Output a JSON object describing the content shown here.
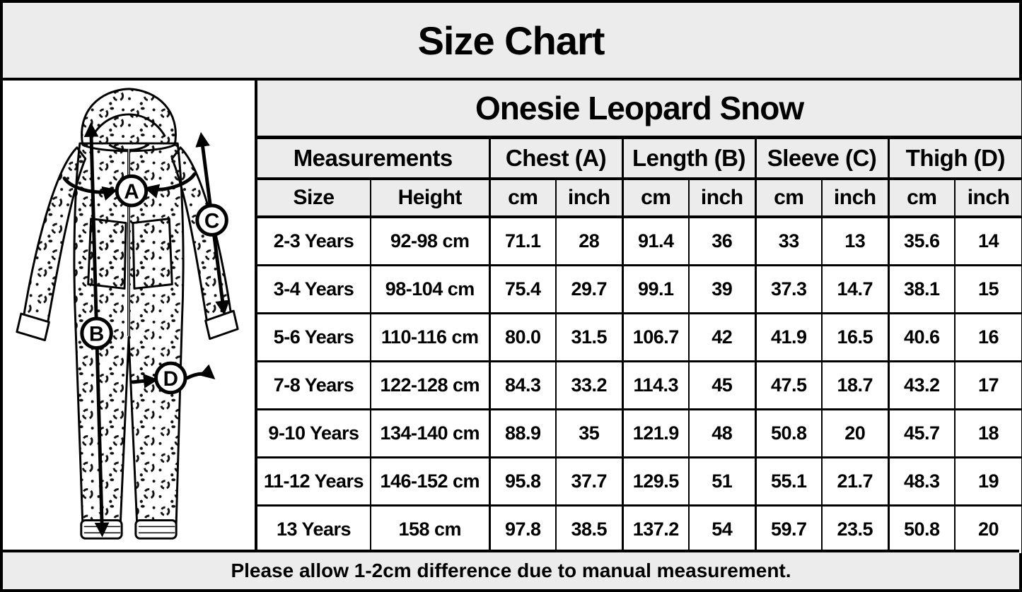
{
  "page": {
    "title": "Size Chart",
    "footer": "Please allow 1-2cm difference due to manual measurement."
  },
  "table": {
    "product_title": "Onesie Leopard Snow",
    "group_headers": [
      {
        "label": "Measurements",
        "span": 2
      },
      {
        "label": "Chest (A)",
        "span": 2
      },
      {
        "label": "Length (B)",
        "span": 2
      },
      {
        "label": "Sleeve (C)",
        "span": 2
      },
      {
        "label": "Thigh (D)",
        "span": 2
      }
    ],
    "sub_headers": [
      "Size",
      "Height",
      "cm",
      "inch",
      "cm",
      "inch",
      "cm",
      "inch",
      "cm",
      "inch"
    ],
    "rows": [
      [
        "2-3 Years",
        "92-98 cm",
        "71.1",
        "28",
        "91.4",
        "36",
        "33",
        "13",
        "35.6",
        "14"
      ],
      [
        "3-4 Years",
        "98-104 cm",
        "75.4",
        "29.7",
        "99.1",
        "39",
        "37.3",
        "14.7",
        "38.1",
        "15"
      ],
      [
        "5-6 Years",
        "110-116 cm",
        "80.0",
        "31.5",
        "106.7",
        "42",
        "41.9",
        "16.5",
        "40.6",
        "16"
      ],
      [
        "7-8 Years",
        "122-128 cm",
        "84.3",
        "33.2",
        "114.3",
        "45",
        "47.5",
        "18.7",
        "43.2",
        "17"
      ],
      [
        "9-10 Years",
        "134-140 cm",
        "88.9",
        "35",
        "121.9",
        "48",
        "50.8",
        "20",
        "45.7",
        "18"
      ],
      [
        "11-12 Years",
        "146-152 cm",
        "95.8",
        "37.7",
        "129.5",
        "51",
        "55.1",
        "21.7",
        "48.3",
        "19"
      ],
      [
        "13 Years",
        "158 cm",
        "97.8",
        "38.5",
        "137.2",
        "54",
        "59.7",
        "23.5",
        "50.8",
        "20"
      ]
    ]
  },
  "illustration": {
    "description": "leopard print hooded onesie with measurement arrows",
    "markers": {
      "a": "A",
      "b": "B",
      "c": "C",
      "d": "D"
    }
  },
  "colors": {
    "background": "#ececec",
    "cell": "#ffffff",
    "border": "#000000",
    "text": "#000000"
  }
}
